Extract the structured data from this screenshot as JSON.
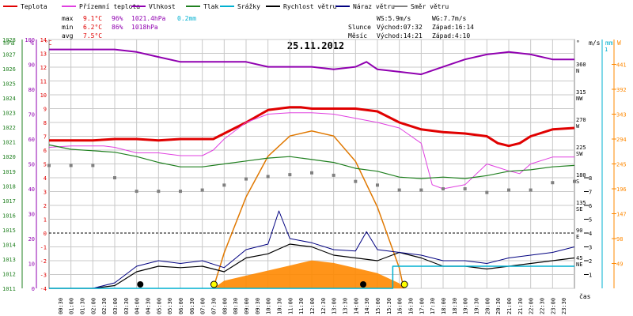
{
  "legend": [
    {
      "label": "Teplota",
      "color": "#e00000"
    },
    {
      "label": "Přízemní teplota",
      "color": "#e040e0"
    },
    {
      "label": "Vlhkost",
      "color": "#9000b0"
    },
    {
      "label": "Tlak",
      "color": "#208020"
    },
    {
      "label": "Srážky",
      "color": "#00b0d0"
    },
    {
      "label": "Rychlost větru",
      "color": "#000000"
    },
    {
      "label": "Náraz větru",
      "color": "#000080"
    },
    {
      "label": "Směr větru",
      "color": "#808080"
    }
  ],
  "stats": {
    "max": {
      "label": "max",
      "temp": "9.1°C",
      "hum": "96%",
      "press": "1021.4hPa",
      "rain": "0.2mm"
    },
    "min": {
      "label": "min",
      "temp": "6.2°C",
      "hum": "86%",
      "press": "1018hPa"
    },
    "avg": {
      "label": "avg",
      "temp": "7.5°C"
    }
  },
  "wind_info": {
    "ws": "WS:5.9m/s",
    "wg": "WG:7.7m/s"
  },
  "sun": {
    "label": "Slunce",
    "rise": "Východ:07:32",
    "set": "Západ:16:14"
  },
  "moon": {
    "label": "Měsíc",
    "rise": "Východ:14:21",
    "set": "Západ:4:10"
  },
  "date": "25.11.2012",
  "x_axis_label": "čas",
  "unit_labels": {
    "hpa": "hPa",
    "pct": "%",
    "degc": "°C",
    "deg": "°",
    "ms": "m/s",
    "mm": "mm",
    "w": "W"
  },
  "colors": {
    "temp": "#e00000",
    "ground": "#e040e0",
    "hum": "#9000b0",
    "press": "#208020",
    "rain": "#00b0d0",
    "speed": "#000000",
    "gust": "#000080",
    "dir": "#808080",
    "solar": "#ff8800",
    "solar_curve": "#e07800",
    "grid": "#c8c8c8",
    "zero": "#000000",
    "axis_hpa": "#208020",
    "axis_pct": "#9000b0",
    "axis_c": "#e00000",
    "axis_w": "#ff8800"
  },
  "chart_data": {
    "type": "line",
    "title": "25.11.2012",
    "x_ticks": [
      "00:30",
      "01:00",
      "01:30",
      "02:00",
      "02:30",
      "03:00",
      "03:30",
      "04:00",
      "04:30",
      "05:00",
      "05:30",
      "06:00",
      "06:30",
      "07:00",
      "07:30",
      "08:00",
      "08:30",
      "09:00",
      "09:30",
      "10:00",
      "10:30",
      "11:00",
      "11:30",
      "12:00",
      "12:30",
      "13:00",
      "13:30",
      "14:00",
      "14:30",
      "15:00",
      "15:30",
      "16:00",
      "16:30",
      "17:00",
      "17:30",
      "18:00",
      "18:30",
      "19:00",
      "19:30",
      "20:00",
      "20:30",
      "21:00",
      "21:30",
      "22:00",
      "22:30",
      "23:00",
      "23:30"
    ],
    "axes": {
      "pressure_hpa": {
        "min": 1011,
        "max": 1028,
        "ticks": [
          1011,
          1012,
          1013,
          1014,
          1015,
          1016,
          1017,
          1018,
          1019,
          1020,
          1021,
          1022,
          1023,
          1024,
          1025,
          1026,
          1027,
          1028
        ]
      },
      "humidity_pct": {
        "min": 0,
        "max": 100,
        "ticks": [
          0,
          10,
          20,
          30,
          40,
          50,
          60,
          70,
          80,
          90,
          100
        ]
      },
      "temperature_c": {
        "min": -4,
        "max": 14,
        "ticks": [
          -4,
          -3,
          -2,
          -1,
          0,
          1,
          2,
          3,
          4,
          5,
          6,
          7,
          8,
          9,
          10,
          11,
          12,
          13,
          14
        ]
      },
      "wind_dir_deg": {
        "ticks": [
          {
            "v": 360,
            "l": "N"
          },
          {
            "v": 315,
            "l": "NW"
          },
          {
            "v": 270,
            "l": "W"
          },
          {
            "v": 225,
            "l": "SW"
          },
          {
            "v": 180,
            "l": "S"
          },
          {
            "v": 135,
            "l": "SE"
          },
          {
            "v": 90,
            "l": "E"
          },
          {
            "v": 45,
            "l": "NE"
          },
          {
            "v": 0,
            "l": ""
          }
        ]
      },
      "wind_speed_ms": {
        "ticks": [
          8,
          7,
          6,
          5,
          4,
          3,
          2,
          1
        ]
      },
      "rain_mm": {
        "top": "1"
      },
      "solar_w": {
        "min": 0,
        "max": 490,
        "ticks": [
          49,
          98,
          147,
          196,
          245,
          294,
          343,
          392,
          441
        ]
      }
    },
    "series": [
      {
        "name": "Teplota",
        "key": "temp",
        "axis": "temperature_c",
        "x": [
          0,
          1,
          2,
          3,
          4,
          5,
          6,
          7,
          7.5,
          8,
          9,
          10,
          11,
          11.5,
          12,
          13,
          14,
          15,
          16,
          17,
          18,
          19,
          20,
          20.5,
          21,
          21.5,
          22,
          23,
          24
        ],
        "y": [
          6.7,
          6.7,
          6.7,
          6.8,
          6.8,
          6.7,
          6.8,
          6.8,
          6.8,
          7.2,
          8,
          8.9,
          9.1,
          9.1,
          9.0,
          9.0,
          9.0,
          8.8,
          8.0,
          7.5,
          7.3,
          7.2,
          7.0,
          6.5,
          6.3,
          6.5,
          7.0,
          7.5,
          7.6
        ]
      },
      {
        "name": "Přízemní teplota",
        "key": "ground",
        "axis": "temperature_c",
        "x": [
          0,
          1,
          2,
          2.5,
          3,
          4,
          5,
          6,
          7,
          7.5,
          8,
          9,
          10,
          11,
          12,
          13,
          14,
          15,
          16,
          17,
          17.5,
          18,
          19,
          20,
          21,
          21.5,
          22,
          23,
          24
        ],
        "y": [
          6.2,
          6.3,
          6.3,
          6.3,
          6.2,
          5.8,
          5.8,
          5.6,
          5.6,
          6.0,
          6.8,
          8.0,
          8.6,
          8.7,
          8.7,
          8.6,
          8.3,
          8.0,
          7.6,
          6.5,
          3.5,
          3.2,
          3.5,
          5.0,
          4.5,
          4.3,
          5.0,
          5.5,
          5.5
        ]
      },
      {
        "name": "Vlhkost",
        "key": "hum",
        "axis": "humidity_pct",
        "x": [
          0,
          1,
          2,
          3,
          4,
          5,
          6,
          7,
          8,
          9,
          10,
          11,
          12,
          13,
          14,
          14.5,
          15,
          16,
          17,
          18,
          19,
          20,
          21,
          22,
          23,
          24
        ],
        "y": [
          96,
          96,
          96,
          96,
          95,
          93,
          91,
          91,
          91,
          91,
          89,
          89,
          89,
          88,
          89,
          91,
          88,
          87,
          86,
          89,
          92,
          94,
          95,
          94,
          92,
          92
        ]
      },
      {
        "name": "Tlak",
        "key": "press",
        "axis": "pressure_hpa",
        "x": [
          0,
          1,
          2,
          3,
          4,
          5,
          6,
          7,
          8,
          9,
          10,
          11,
          12,
          13,
          14,
          15,
          16,
          17,
          18,
          19,
          20,
          21,
          22,
          23,
          24
        ],
        "y": [
          1020.8,
          1020.5,
          1020.4,
          1020.3,
          1020.0,
          1019.6,
          1019.3,
          1019.3,
          1019.5,
          1019.7,
          1019.9,
          1020.0,
          1019.8,
          1019.6,
          1019.2,
          1019.0,
          1018.6,
          1018.5,
          1018.6,
          1018.5,
          1018.7,
          1019.0,
          1019.1,
          1019.3,
          1019.4
        ]
      },
      {
        "name": "Rychlost větru",
        "key": "speed",
        "axis": "wind_speed_ms",
        "x": [
          0,
          1,
          2,
          3,
          4,
          5,
          6,
          7,
          8,
          9,
          10,
          11,
          12,
          13,
          14,
          15,
          16,
          17,
          18,
          19,
          20,
          21,
          22,
          23,
          24
        ],
        "y": [
          0,
          0,
          0,
          0.2,
          1.2,
          1.6,
          1.5,
          1.6,
          1.2,
          2.2,
          2.5,
          3.2,
          3.0,
          2.4,
          2.2,
          2.0,
          2.6,
          2.2,
          1.6,
          1.6,
          1.4,
          1.6,
          1.8,
          2.0,
          2.2
        ]
      },
      {
        "name": "Náraz větru",
        "key": "gust",
        "axis": "wind_speed_ms",
        "x": [
          0,
          1,
          2,
          3,
          4,
          5,
          6,
          7,
          8,
          9,
          10,
          10.5,
          11,
          12,
          13,
          14,
          14.5,
          15,
          16,
          17,
          18,
          19,
          20,
          21,
          22,
          23,
          24
        ],
        "y": [
          0,
          0,
          0,
          0.4,
          1.6,
          2.0,
          1.8,
          2.0,
          1.5,
          2.8,
          3.2,
          5.6,
          3.6,
          3.3,
          2.8,
          2.7,
          4.1,
          2.8,
          2.6,
          2.4,
          2.0,
          2.0,
          1.8,
          2.2,
          2.4,
          2.6,
          3.0
        ]
      },
      {
        "name": "Srážky",
        "key": "rain",
        "axis": "rain_mm",
        "x": [
          0,
          15.7,
          15.7,
          24
        ],
        "y": [
          0,
          0,
          0.2,
          0.2
        ]
      },
      {
        "name": "Směr větru",
        "key": "dir",
        "axis": "wind_dir_deg",
        "x": [
          0,
          1,
          2,
          3,
          4,
          5,
          6,
          7,
          8,
          9,
          10,
          11,
          12,
          13,
          14,
          15,
          16,
          17,
          18,
          19,
          20,
          21,
          22,
          23,
          24
        ],
        "y": [
          200,
          200,
          200,
          180,
          158,
          158,
          158,
          160,
          168,
          178,
          182,
          185,
          188,
          184,
          174,
          168,
          160,
          160,
          162,
          162,
          156,
          160,
          160,
          172,
          174
        ]
      }
    ],
    "solar": {
      "name": "Solar",
      "axis": "solar_w",
      "x": [
        7.5,
        8,
        9,
        10,
        11,
        12,
        13,
        14,
        15,
        16,
        16.2
      ],
      "y": [
        0,
        15,
        25,
        35,
        45,
        55,
        50,
        40,
        30,
        10,
        0
      ],
      "theoretical_x": [
        7.5,
        8,
        9,
        10,
        11,
        12,
        13,
        14,
        15,
        16,
        16.2
      ],
      "theoretical_y": [
        0,
        70,
        180,
        260,
        300,
        310,
        300,
        250,
        160,
        40,
        0
      ]
    },
    "markers": {
      "sunrise": "07:32",
      "sunset": "16:14",
      "moonrise": "14:21",
      "moonset": "04:10"
    }
  }
}
